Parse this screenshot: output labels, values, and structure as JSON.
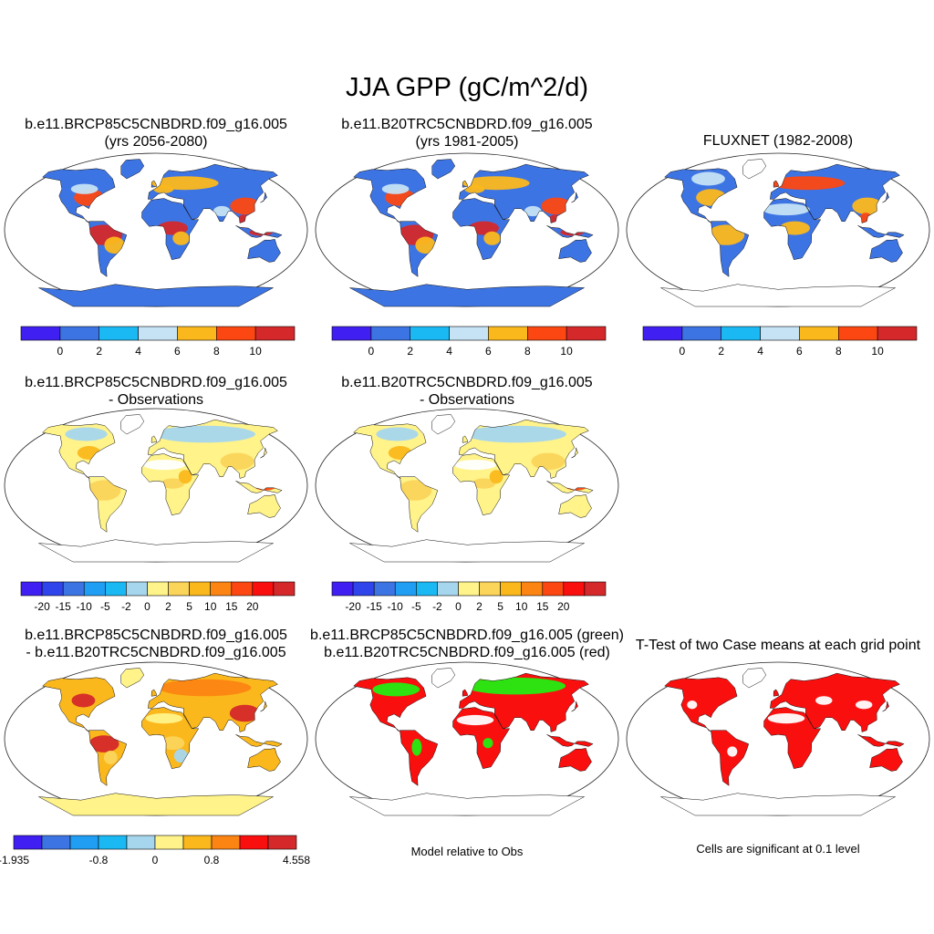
{
  "title": "JJA GPP (gC/m^2/d)",
  "panels": [
    {
      "id": "p1",
      "line1": "b.e11.BRCP85C5CNBDRD.f09_g16.005",
      "line2": "(yrs 2056-2080)",
      "style": "abs"
    },
    {
      "id": "p2",
      "line1": "b.e11.B20TRC5CNBDRD.f09_g16.005",
      "line2": "(yrs 1981-2005)",
      "style": "abs"
    },
    {
      "id": "p3",
      "line1": "",
      "line2": "FLUXNET (1982-2008)",
      "style": "obs"
    },
    {
      "id": "p4",
      "line1": "b.e11.BRCP85C5CNBDRD.f09_g16.005",
      "line2": "- Observations",
      "style": "diff"
    },
    {
      "id": "p5",
      "line1": "b.e11.B20TRC5CNBDRD.f09_g16.005",
      "line2": "- Observations",
      "style": "diff"
    },
    {
      "id": "p7",
      "line1": "b.e11.BRCP85C5CNBDRD.f09_g16.005",
      "line2": "- b.e11.B20TRC5CNBDRD.f09_g16.005",
      "style": "mdiff"
    },
    {
      "id": "p8",
      "line1": "b.e11.BRCP85C5CNBDRD.f09_g16.005 (green)",
      "line2": "b.e11.B20TRC5CNBDRD.f09_g16.005 (red)",
      "style": "rel"
    },
    {
      "id": "p9",
      "line1": "",
      "line2": "T-Test of two Case means at each grid point",
      "style": "ttest"
    }
  ],
  "colorbars": {
    "abs": {
      "colors": [
        "#3f1ff2",
        "#3d74e4",
        "#1ab9f4",
        "#c5e3f4",
        "#fbb81c",
        "#fc4712",
        "#d4282a"
      ],
      "labels": [
        "0",
        "2",
        "4",
        "6",
        "8",
        "10"
      ]
    },
    "diff": {
      "colors": [
        "#3f1ff2",
        "#2f44ea",
        "#3d74e4",
        "#1f9ef4",
        "#1ab9f4",
        "#a6d6ee",
        "#fff38a",
        "#fbd45a",
        "#fbb81c",
        "#fc8412",
        "#fc4712",
        "#fa0f0f",
        "#d4282a"
      ],
      "labels": [
        "-20",
        "-15",
        "-10",
        "-5",
        "-2",
        "0",
        "2",
        "5",
        "10",
        "15",
        "20"
      ]
    },
    "mdiff": {
      "colors": [
        "#3f1ff2",
        "#3d74e4",
        "#1f9ef4",
        "#1ab9f4",
        "#a6d6ee",
        "#fff38a",
        "#fbb81c",
        "#fc8412",
        "#fa0f0f",
        "#d4282a"
      ],
      "labels": [
        "-1.935",
        "-0.8",
        "0",
        "0.8",
        "4.558"
      ]
    }
  },
  "notes": {
    "relative": "Model relative to Obs",
    "significance": "Cells are significant at 0.1 level"
  },
  "map_colors": {
    "land_abs": "#3d74e4",
    "land_obs": "#3d74e4",
    "land_diff": "#fff38a",
    "land_mdiff": "#fbb81c",
    "rel_red": "#fa0f0f",
    "rel_green": "#22ee11",
    "ttest_red": "#fa0f0f"
  }
}
